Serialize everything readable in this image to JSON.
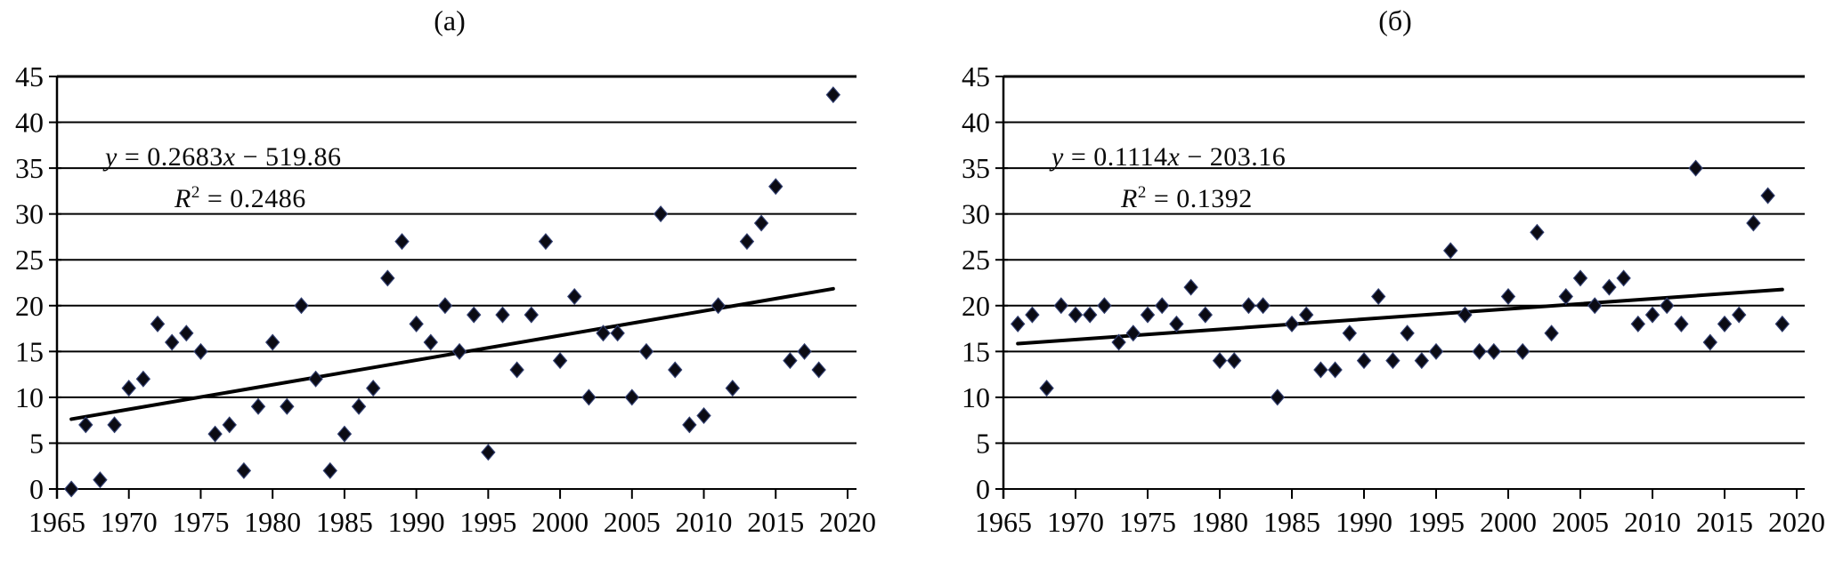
{
  "figure": {
    "background": "#ffffff",
    "ink_color": "#000000"
  },
  "chart_data": [
    {
      "type": "scatter",
      "title": "(а)",
      "marker": "diamond",
      "marker_color": "#0b0b14",
      "marker_edge_color": "#303d6e",
      "grid": "horizontal",
      "xlim": [
        1965,
        2020
      ],
      "ylim": [
        0,
        45
      ],
      "x_ticks": [
        1965,
        1970,
        1975,
        1980,
        1985,
        1990,
        1995,
        2000,
        2005,
        2010,
        2015,
        2020
      ],
      "y_ticks": [
        0,
        5,
        10,
        15,
        20,
        25,
        30,
        35,
        40,
        45
      ],
      "points": {
        "x": [
          1966,
          1967,
          1968,
          1969,
          1970,
          1971,
          1972,
          1973,
          1974,
          1975,
          1976,
          1977,
          1978,
          1979,
          1980,
          1981,
          1982,
          1983,
          1984,
          1985,
          1986,
          1987,
          1988,
          1989,
          1990,
          1991,
          1992,
          1993,
          1994,
          1995,
          1996,
          1997,
          1998,
          1999,
          2000,
          2001,
          2002,
          2003,
          2004,
          2005,
          2006,
          2007,
          2008,
          2009,
          2010,
          2011,
          2012,
          2013,
          2014,
          2015,
          2016,
          2017,
          2018,
          2019
        ],
        "y": [
          0,
          7,
          1,
          7,
          11,
          12,
          18,
          16,
          17,
          15,
          6,
          7,
          2,
          9,
          16,
          9,
          20,
          12,
          2,
          6,
          9,
          11,
          23,
          27,
          18,
          16,
          20,
          15,
          19,
          4,
          19,
          13,
          19,
          27,
          14,
          21,
          10,
          17,
          17,
          10,
          15,
          30,
          13,
          7,
          8,
          20,
          11,
          27,
          29,
          33,
          14,
          15,
          13,
          43
        ]
      },
      "trendline": {
        "slope": 0.2683,
        "intercept": -519.86,
        "x_start": 1966,
        "x_end": 2019
      },
      "r_squared": 0.2486,
      "equation_text": "y = 0.2683x − 519.86",
      "r2_text": "R² = 0.2486",
      "equation": {
        "y_var": "y",
        "mid": " = 0.2683",
        "x_var": "x",
        "tail": " − 519.86"
      },
      "r2": {
        "r_var": "R",
        "sup": "2",
        "tail": " = 0.2486"
      }
    },
    {
      "type": "scatter",
      "title": "(б)",
      "marker": "diamond",
      "marker_color": "#0b0b14",
      "marker_edge_color": "#303d6e",
      "grid": "horizontal",
      "xlim": [
        1965,
        2020
      ],
      "ylim": [
        0,
        45
      ],
      "x_ticks": [
        1965,
        1970,
        1975,
        1980,
        1985,
        1990,
        1995,
        2000,
        2005,
        2010,
        2015,
        2020
      ],
      "y_ticks": [
        0,
        5,
        10,
        15,
        20,
        25,
        30,
        35,
        40,
        45
      ],
      "points": {
        "x": [
          1966,
          1967,
          1968,
          1969,
          1970,
          1971,
          1972,
          1973,
          1974,
          1975,
          1976,
          1977,
          1978,
          1979,
          1980,
          1981,
          1982,
          1983,
          1984,
          1985,
          1986,
          1987,
          1988,
          1989,
          1990,
          1991,
          1992,
          1993,
          1994,
          1995,
          1996,
          1997,
          1998,
          1999,
          2000,
          2001,
          2002,
          2003,
          2004,
          2005,
          2006,
          2007,
          2008,
          2009,
          2010,
          2011,
          2012,
          2013,
          2014,
          2015,
          2016,
          2017,
          2018,
          2019
        ],
        "y": [
          18,
          19,
          11,
          20,
          19,
          19,
          20,
          16,
          17,
          19,
          20,
          18,
          22,
          19,
          14,
          14,
          20,
          20,
          10,
          18,
          19,
          13,
          13,
          17,
          14,
          21,
          14,
          17,
          14,
          15,
          26,
          19,
          15,
          15,
          21,
          15,
          28,
          17,
          21,
          23,
          20,
          22,
          23,
          18,
          19,
          20,
          18,
          35,
          16,
          18,
          19,
          29,
          32,
          18
        ]
      },
      "trendline": {
        "slope": 0.1114,
        "intercept": -203.16,
        "x_start": 1966,
        "x_end": 2019
      },
      "r_squared": 0.1392,
      "equation_text": "y = 0.1114x − 203.16",
      "r2_text": "R² = 0.1392",
      "equation": {
        "y_var": "y",
        "mid": " = 0.1114",
        "x_var": "x",
        "tail": " − 203.16"
      },
      "r2": {
        "r_var": "R",
        "sup": "2",
        "tail": " = 0.1392"
      }
    }
  ]
}
